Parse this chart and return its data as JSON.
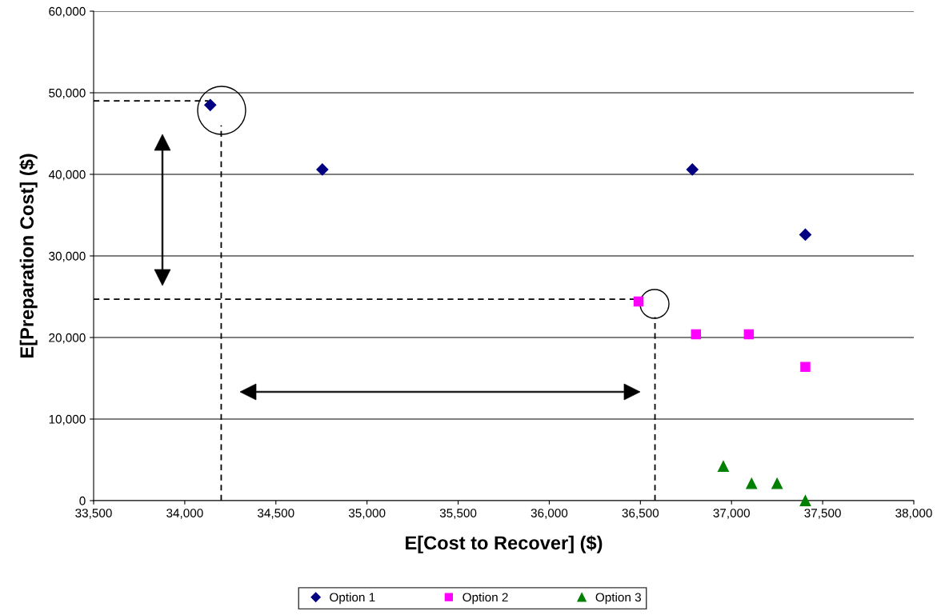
{
  "chart_data": {
    "type": "scatter",
    "xlabel": "E[Cost to Recover] ($)",
    "ylabel": "E[Preparation Cost] ($)",
    "xlim": [
      33500,
      38000
    ],
    "ylim": [
      0,
      60000
    ],
    "xticks": [
      {
        "value": 33500,
        "label": "33,500"
      },
      {
        "value": 34000,
        "label": "34,000"
      },
      {
        "value": 34500,
        "label": "34,500"
      },
      {
        "value": 35000,
        "label": "35,000"
      },
      {
        "value": 35500,
        "label": "35,500"
      },
      {
        "value": 36000,
        "label": "36,000"
      },
      {
        "value": 36500,
        "label": "36,500"
      },
      {
        "value": 37000,
        "label": "37,000"
      },
      {
        "value": 37500,
        "label": "37,500"
      },
      {
        "value": 38000,
        "label": "38,000"
      }
    ],
    "yticks": [
      0,
      {
        "value": 10000,
        "label": "10,000"
      },
      {
        "value": 20000,
        "label": "20,000"
      },
      {
        "value": 30000,
        "label": "30,000"
      },
      {
        "value": 40000,
        "label": "40,000"
      },
      {
        "value": 50000,
        "label": "50,000"
      },
      {
        "value": 60000,
        "label": "60,000"
      }
    ],
    "grid": "y",
    "legend": "bottom",
    "series": [
      {
        "name": "Option 1",
        "color": "#000080",
        "marker": "diamond",
        "x": [
          34140,
          34755,
          36785,
          37405
        ],
        "values": [
          48500,
          40600,
          40600,
          32600
        ]
      },
      {
        "name": "Option 2",
        "color": "#ff00ff",
        "marker": "square",
        "x": [
          36490,
          36805,
          37095,
          37405
        ],
        "values": [
          24400,
          20400,
          20400,
          16400
        ]
      },
      {
        "name": "Option 3",
        "color": "#008000",
        "marker": "triangle",
        "x": [
          36955,
          37110,
          37250,
          37405
        ],
        "values": [
          4200,
          2100,
          2100,
          0
        ]
      },
      {
        "type": "line",
        "color": "#000000",
        "line_style": "dashed",
        "marker": "none",
        "x": [
          33500,
          34130
        ],
        "values": [
          49000,
          49000
        ]
      },
      {
        "type": "line",
        "color": "#000000",
        "line_style": "dashed",
        "marker": "none",
        "x": [
          34200,
          34200
        ],
        "values": [
          0,
          46000
        ]
      },
      {
        "type": "line",
        "color": "#000000",
        "line_style": "dashed",
        "marker": "none",
        "x": [
          33500,
          36475
        ],
        "values": [
          24700,
          24700
        ]
      },
      {
        "type": "line",
        "color": "#000000",
        "line_style": "dashed",
        "marker": "none",
        "x": [
          36580,
          36580
        ],
        "values": [
          0,
          22500
        ]
      }
    ]
  }
}
